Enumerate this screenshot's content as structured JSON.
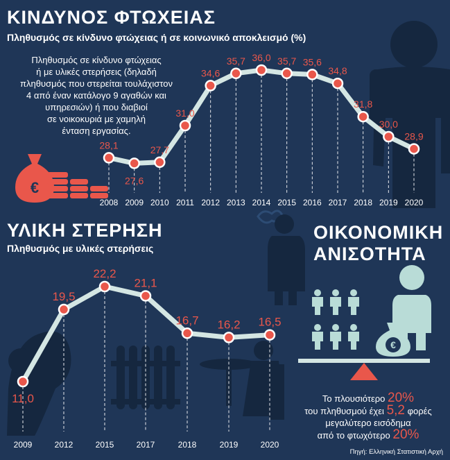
{
  "colors": {
    "background": "#1f3657",
    "accent": "#e9574b",
    "line": "#d4e6e3",
    "silhouette": "#15273f",
    "figure": "#b9dcd7"
  },
  "poverty": {
    "title": "ΚΙΝΔΥΝΟΣ ΦΤΩΧΕΙΑΣ",
    "subtitle": "Πληθυσμός σε κίνδυνο φτώχειας ή σε κοινωνικό αποκλεισμό (%)",
    "description": [
      "Πληθυσμός σε κίνδυνο φτώχειας",
      "ή με υλικές στερήσεις (δηλαδή",
      "πληθυσμός που στερείται τουλάχιστον",
      "4 από έναν κατάλογο 9 αγαθών και",
      "υπηρεσιών) ή που διαβιοί",
      "σε νοικοκυριά με χαμηλή",
      "ένταση εργασίας."
    ]
  },
  "deprivation": {
    "title": "ΥΛΙΚΗ ΣΤΕΡΗΣΗ",
    "subtitle": "Πληθυσμός με υλικές στερήσεις"
  },
  "inequality": {
    "title_line1": "ΟΙΚΟΝΟΜΙΚΗ",
    "title_line2": "ΑΝΙΣΟΤΗΤΑ",
    "line1_text": "Το πλουσιότερο",
    "line1_value": "20%",
    "line2_text_a": "του πληθυσμού έχει",
    "line2_value": "5,2",
    "line2_text_b": "φορές",
    "line3_text": "μεγαλύτερο εισόδημα",
    "line4_text": "από το φτωχότερο",
    "line4_value": "20%"
  },
  "source": "Πηγή: Ελληνική Στατιστική Αρχή",
  "chart_data": [
    {
      "type": "line",
      "title": "ΚΙΝΔΥΝΟΣ ΦΤΩΧΕΙΑΣ",
      "subtitle": "Πληθυσμός σε κίνδυνο φτώχειας ή σε κοινωνικό αποκλεισμό (%)",
      "categories": [
        "2008",
        "2009",
        "2010",
        "2011",
        "2012",
        "2013",
        "2014",
        "2015",
        "2016",
        "2017",
        "2018",
        "2019",
        "2020"
      ],
      "values": [
        28.1,
        27.6,
        27.7,
        31.0,
        34.6,
        35.7,
        36.0,
        35.7,
        35.6,
        34.8,
        31.8,
        30.0,
        28.9
      ],
      "labels": [
        "28,1",
        "27,6",
        "27,7",
        "31,0",
        "34,6",
        "35,7",
        "36,0",
        "35,7",
        "35,6",
        "34,8",
        "31,8",
        "30,0",
        "28,9"
      ],
      "ylim": [
        27,
        36.5
      ],
      "grid": "vertical dashed"
    },
    {
      "type": "line",
      "title": "ΥΛΙΚΗ ΣΤΕΡΗΣΗ",
      "subtitle": "Πληθυσμός με υλικές στερήσεις",
      "categories": [
        "2009",
        "2012",
        "2015",
        "2017",
        "2018",
        "2019",
        "2020"
      ],
      "values": [
        11.0,
        19.5,
        22.2,
        21.1,
        16.7,
        16.2,
        16.5
      ],
      "labels": [
        "11,0",
        "19,5",
        "22,2",
        "21,1",
        "16,7",
        "16,2",
        "16,5"
      ],
      "ylim": [
        11,
        22.2
      ],
      "grid": "vertical dashed"
    }
  ]
}
